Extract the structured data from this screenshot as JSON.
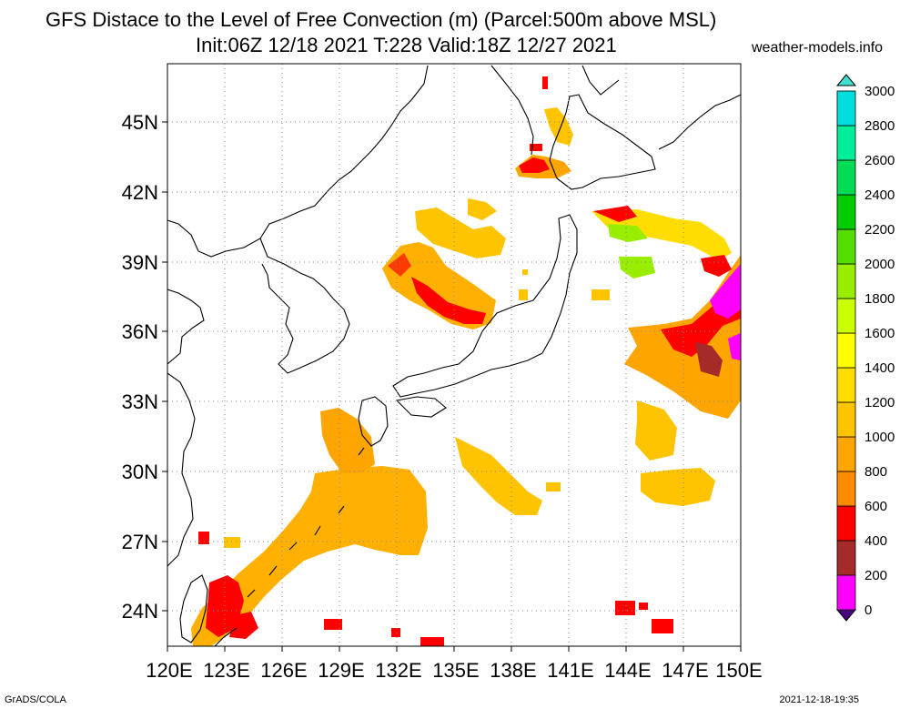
{
  "header": {
    "title": "GFS Distace to the Level of Free Convection (m) (Parcel:500m above MSL)",
    "subtitle": "Init:06Z 12/18 2021 T:228 Valid:18Z 12/27 2021",
    "site": "weather-models.info"
  },
  "map": {
    "lat_labels": [
      "45N",
      "42N",
      "39N",
      "36N",
      "33N",
      "30N",
      "27N",
      "24N"
    ],
    "lon_labels": [
      "120E",
      "123E",
      "126E",
      "129E",
      "132E",
      "135E",
      "138E",
      "141E",
      "144E",
      "147E",
      "150E"
    ],
    "lat_range": [
      22.5,
      47.5
    ],
    "lon_range": [
      120,
      150
    ],
    "grid": "dotted"
  },
  "colorbar": {
    "levels": [
      "0",
      "200",
      "400",
      "600",
      "800",
      "1000",
      "1200",
      "1400",
      "1600",
      "1800",
      "2000",
      "2200",
      "2400",
      "2600",
      "2800",
      "3000"
    ],
    "colors": [
      "#4b0082",
      "#ff00ff",
      "#a52a2a",
      "#ff0000",
      "#ff8c00",
      "#ffa500",
      "#ffc400",
      "#ffdd00",
      "#ffff00",
      "#ccff00",
      "#99ee00",
      "#55dd00",
      "#00cc00",
      "#00dd55",
      "#00ee99",
      "#00dddd",
      "#40e0d0"
    ]
  },
  "footer": {
    "left": "GrADS/COLA",
    "right": "2021-12-18-19:35"
  }
}
